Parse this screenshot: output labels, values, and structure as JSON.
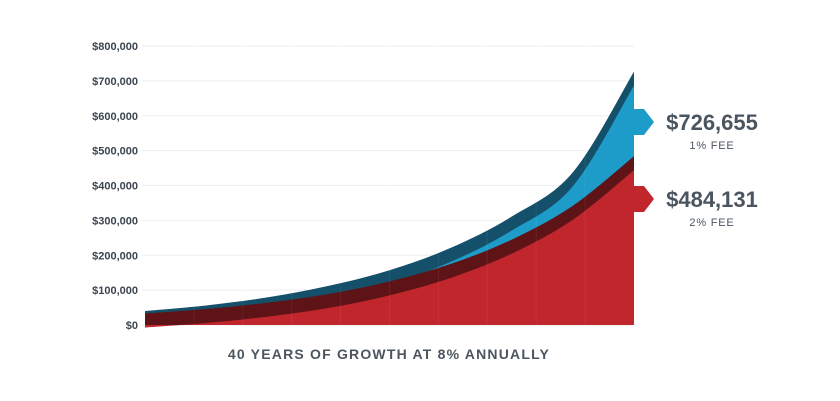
{
  "chart_data": {
    "type": "area",
    "xlabel": "40 YEARS OF GROWTH AT 8% ANNUALLY",
    "ylabel": "",
    "ylim": [
      0,
      800000
    ],
    "y_ticks": [
      "$0",
      "$100,000",
      "$200,000",
      "$300,000",
      "$400,000",
      "$500,000",
      "$600,000",
      "$700,000",
      "$800,000"
    ],
    "y_tick_values": [
      0,
      100000,
      200000,
      300000,
      400000,
      500000,
      600000,
      700000,
      800000
    ],
    "grid": true,
    "x": [
      0,
      5,
      10,
      15,
      20,
      25,
      30,
      35,
      40
    ],
    "series": [
      {
        "name": "1% FEE",
        "values": [
          40000,
          56000,
          79000,
          112000,
          157000,
          221000,
          311000,
          438000,
          726655
        ],
        "color": "#1e9cc9",
        "edge_color": "#15506b"
      },
      {
        "name": "2% FEE",
        "values": [
          33000,
          46000,
          64000,
          89000,
          125000,
          175000,
          245000,
          342000,
          484131
        ],
        "color": "#c1262d",
        "edge_color": "#5e1417"
      }
    ],
    "callouts": [
      {
        "value": "$726,655",
        "label": "1% FEE",
        "color": "#1e9cc9"
      },
      {
        "value": "$484,131",
        "label": "2% FEE",
        "color": "#c1262d"
      }
    ]
  }
}
